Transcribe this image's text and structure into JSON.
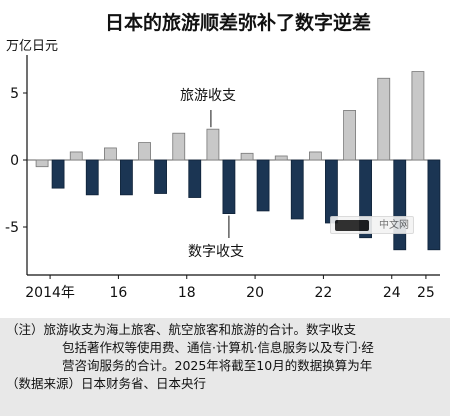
{
  "chart_data": {
    "type": "bar",
    "title": "日本的旅游顺差弥补了数字逆差",
    "unit_label": "万亿日元",
    "categories": [
      "2014",
      "2015",
      "2016",
      "2017",
      "2018",
      "2019",
      "2020",
      "2021",
      "2022",
      "2023",
      "2024",
      "2025"
    ],
    "x_tick_labels": [
      {
        "index": 0,
        "label": "2014年"
      },
      {
        "index": 2,
        "label": "16"
      },
      {
        "index": 4,
        "label": "18"
      },
      {
        "index": 6,
        "label": "20"
      },
      {
        "index": 8,
        "label": "22"
      },
      {
        "index": 10,
        "label": "24"
      },
      {
        "index": 11,
        "label": "25"
      }
    ],
    "series": [
      {
        "name": "旅游收支",
        "color": "#c8c8c8",
        "values": [
          -0.5,
          0.6,
          0.9,
          1.3,
          2.0,
          2.3,
          0.5,
          0.3,
          0.6,
          3.7,
          6.1,
          6.6
        ]
      },
      {
        "name": "数字收支",
        "color": "#1b3553",
        "values": [
          -2.1,
          -2.6,
          -2.6,
          -2.5,
          -2.8,
          -4.0,
          -3.8,
          -4.4,
          -4.7,
          -5.8,
          -6.7,
          -6.7
        ]
      }
    ],
    "ylim": [
      -8.3,
      7.6
    ],
    "y_ticks": [
      5,
      0,
      -5
    ],
    "y_tick_labels": [
      "5",
      "0",
      "-5"
    ],
    "annotations": [
      "旅游收支",
      "数字收支"
    ],
    "grid": false,
    "legend": "inline labels"
  },
  "notes": {
    "line1": "（注）旅游收支为海上旅客、航空旅客和旅游的合计。数字收支",
    "line2": "包括著作权等使用费、通信·计算机·信息服务以及专门·经",
    "line3": "营咨询服务的合计。2025年将截至10月的数据换算为年",
    "line4": "（数据来源）日本财务省、日本央行"
  },
  "watermark": {
    "text": "中文网"
  }
}
